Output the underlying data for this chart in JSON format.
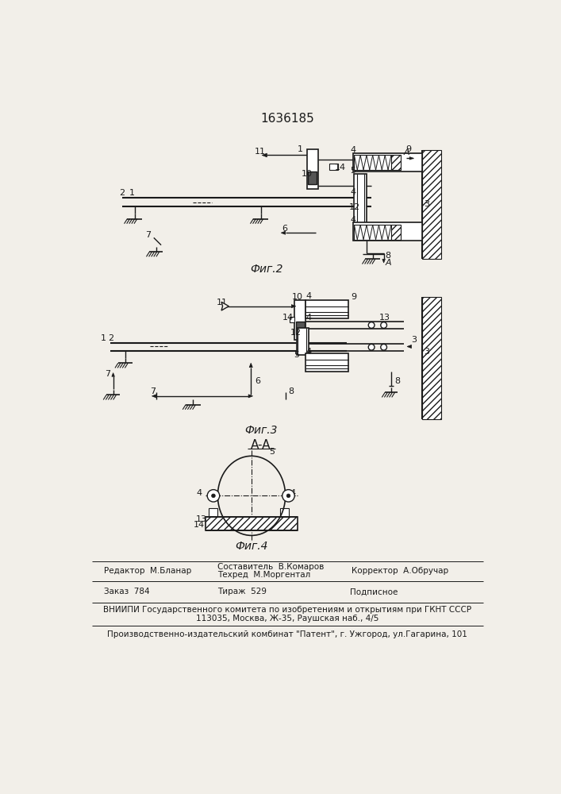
{
  "title": "1636185",
  "fig2_label": "Фиг.2",
  "fig3_label": "Фиг.3",
  "fig4_label": "Фиг.4",
  "aa_label": "A-A",
  "editor_line": "Редактор  М.Бланар",
  "composer_line1": "Составитель  В.Комаров",
  "composer_line2": "Техред  М.Моргентал",
  "corrector_line": "Корректор  А.Обручар",
  "order_line": "Заказ  784",
  "tirazh_line": "Тираж  529",
  "podpisnoe_line": "Подписное",
  "vnipi_line1": "ВНИИПИ Государственного комитета по изобретениям и открытиям при ГКНТ СССР",
  "vnipi_line2": "113035, Москва, Ж-35, Раушская наб., 4/5",
  "factory_line": "Производственно-издательский комбинат \"Патент\", г. Ужгород, ул.Гагарина, 101",
  "bg_color": "#f2efe9",
  "line_color": "#1a1a1a"
}
